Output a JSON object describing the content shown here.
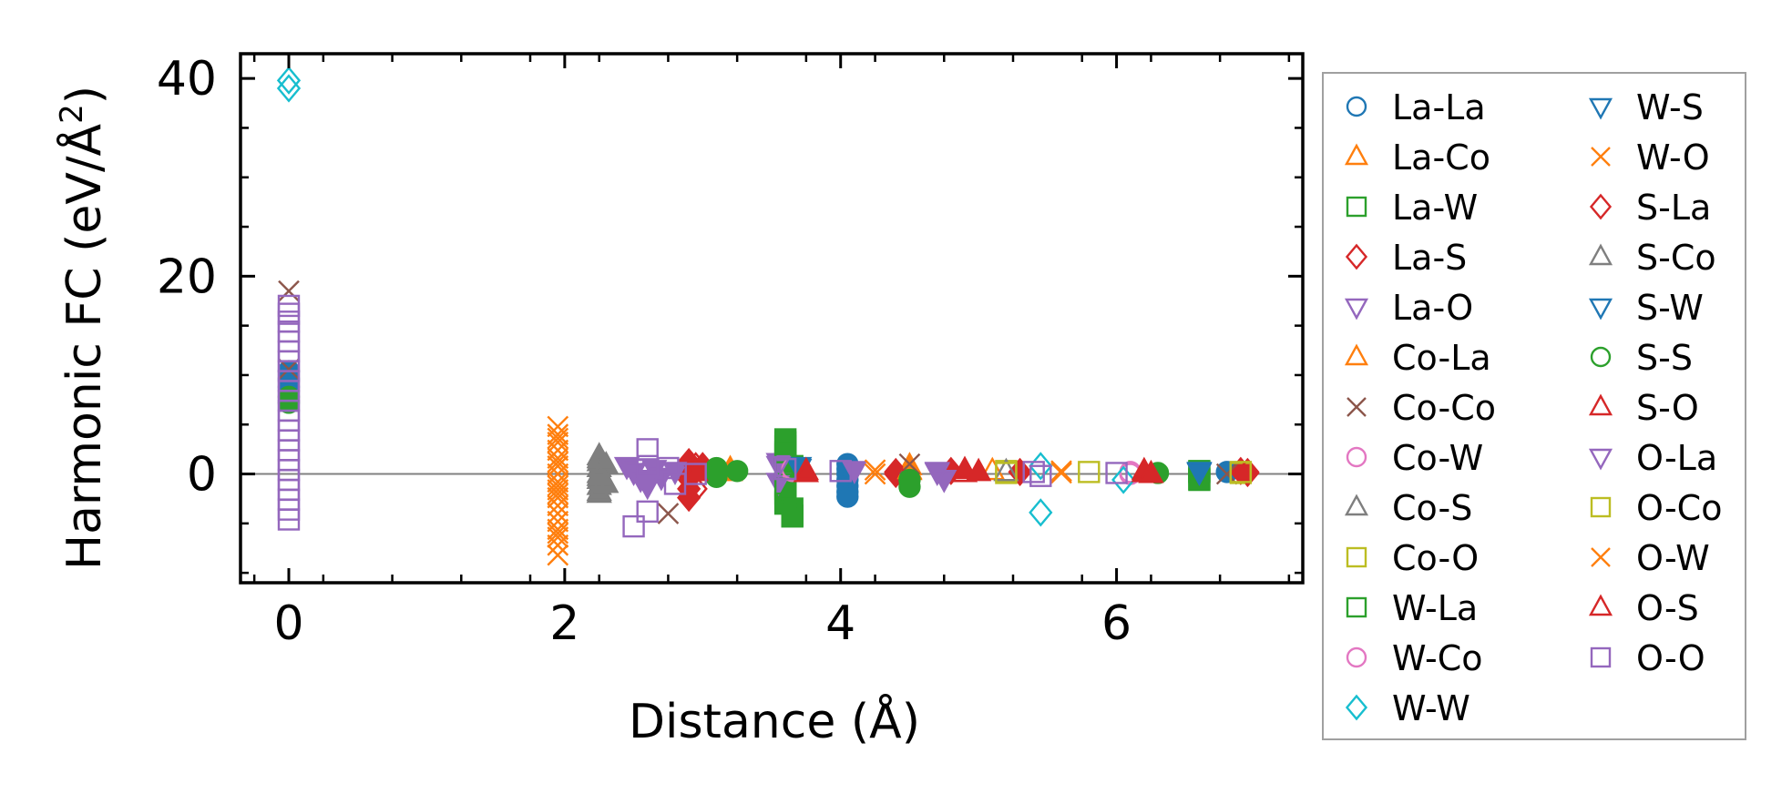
{
  "chart_data": {
    "type": "scatter",
    "title": "",
    "xlabel": "Distance (Å)",
    "ylabel_main": "Harmonic FC (eV/Å",
    "ylabel_sup": "2",
    "ylabel_close": ")",
    "xlim": [
      -0.35,
      7.35
    ],
    "ylim": [
      -11,
      42.5
    ],
    "x_ticks": [
      0,
      2,
      4,
      6
    ],
    "y_ticks": [
      0,
      20,
      40
    ],
    "x_tick_labels": [
      "0",
      "2",
      "4",
      "6"
    ],
    "y_tick_labels": [
      "0",
      "20",
      "40"
    ],
    "grid": false,
    "zero_line": true,
    "legend_position": "outside-right",
    "series": [
      {
        "name": "La-La",
        "marker": "circle",
        "color": "#1f77b4",
        "filled": true,
        "points": [
          [
            0,
            10.4
          ],
          [
            0,
            9.6
          ],
          [
            0,
            8.8
          ],
          [
            4.05,
            1.0
          ],
          [
            4.05,
            0.5
          ],
          [
            4.05,
            0.0
          ],
          [
            4.05,
            -0.6
          ],
          [
            4.05,
            -1.2
          ],
          [
            4.05,
            -1.8
          ],
          [
            4.05,
            -2.3
          ],
          [
            6.8,
            0.2
          ]
        ]
      },
      {
        "name": "La-Co",
        "marker": "triangle-up",
        "color": "#ff7f0e",
        "filled": true,
        "points": [
          [
            3.2,
            0.2
          ],
          [
            3.2,
            0.5
          ],
          [
            4.5,
            0.8
          ],
          [
            4.5,
            0.3
          ]
        ]
      },
      {
        "name": "La-W",
        "marker": "square",
        "color": "#2ca02c",
        "filled": true,
        "points": [
          [
            3.6,
            3.5
          ],
          [
            3.6,
            2.8
          ],
          [
            3.6,
            2.0
          ],
          [
            3.6,
            1.2
          ],
          [
            3.6,
            0.5
          ],
          [
            3.6,
            -0.3
          ],
          [
            3.6,
            -1.2
          ],
          [
            3.6,
            -2.0
          ],
          [
            3.6,
            -2.8
          ],
          [
            3.65,
            -3.5
          ],
          [
            3.65,
            -4.2
          ],
          [
            3.65,
            0.8
          ],
          [
            6.6,
            -0.6
          ],
          [
            6.6,
            0.2
          ]
        ]
      },
      {
        "name": "La-S",
        "marker": "diamond",
        "color": "#d62728",
        "filled": true,
        "points": [
          [
            2.9,
            1.2
          ],
          [
            2.9,
            0.5
          ],
          [
            2.9,
            -0.5
          ],
          [
            2.9,
            -1.5
          ],
          [
            2.9,
            -2.4
          ],
          [
            3.0,
            0.8
          ],
          [
            3.1,
            0.2
          ],
          [
            4.4,
            0.2
          ],
          [
            4.8,
            0.3
          ],
          [
            5.3,
            0.2
          ],
          [
            6.9,
            0.3
          ],
          [
            6.95,
            0.1
          ]
        ]
      },
      {
        "name": "La-O",
        "marker": "triangle-down",
        "color": "#9467bd",
        "filled": true,
        "points": [
          [
            2.45,
            0.8
          ],
          [
            2.5,
            0.2
          ],
          [
            2.55,
            -0.5
          ],
          [
            2.6,
            -1.2
          ],
          [
            2.65,
            0.5
          ],
          [
            2.7,
            -0.3
          ],
          [
            2.8,
            0.3
          ],
          [
            3.55,
            1.2
          ],
          [
            3.55,
            -0.8
          ],
          [
            4.1,
            0.4
          ],
          [
            4.7,
            0.3
          ],
          [
            4.75,
            -0.5
          ]
        ]
      },
      {
        "name": "Co-La",
        "marker": "triangle-up",
        "color": "#ff7f0e",
        "filled": false,
        "points": [
          [
            3.2,
            0.4
          ],
          [
            4.5,
            0.4
          ],
          [
            5.1,
            0.3
          ]
        ]
      },
      {
        "name": "Co-Co",
        "marker": "x",
        "color": "#8c564b",
        "filled": false,
        "points": [
          [
            0,
            18.5
          ],
          [
            0,
            10.6
          ],
          [
            2.75,
            -4.0
          ],
          [
            4.5,
            1.0
          ],
          [
            6.8,
            0.0
          ]
        ]
      },
      {
        "name": "Co-W",
        "marker": "circle",
        "color": "#e377c2",
        "filled": false,
        "points": [
          [
            3.65,
            0.3
          ],
          [
            6.1,
            0.2
          ]
        ]
      },
      {
        "name": "Co-S",
        "marker": "triangle-up",
        "color": "#7f7f7f",
        "filled": true,
        "points": [
          [
            2.25,
            1.8
          ],
          [
            2.25,
            1.2
          ],
          [
            2.25,
            0.6
          ],
          [
            2.25,
            0.0
          ],
          [
            2.25,
            -0.6
          ],
          [
            2.25,
            -1.2
          ],
          [
            2.25,
            -2.0
          ],
          [
            2.3,
            0.9
          ],
          [
            2.3,
            -1.0
          ]
        ]
      },
      {
        "name": "Co-O",
        "marker": "square",
        "color": "#bcbd22",
        "filled": false,
        "points": [
          [
            5.2,
            0.3
          ],
          [
            5.8,
            0.2
          ],
          [
            6.9,
            0.1
          ]
        ]
      },
      {
        "name": "W-La",
        "marker": "square",
        "color": "#2ca02c",
        "filled": false,
        "points": [
          [
            3.6,
            3.2
          ],
          [
            3.6,
            2.2
          ],
          [
            3.6,
            1.0
          ],
          [
            3.6,
            -1.5
          ],
          [
            3.6,
            -3.0
          ],
          [
            3.65,
            -4.3
          ],
          [
            6.6,
            -0.5
          ],
          [
            6.6,
            0.3
          ]
        ]
      },
      {
        "name": "W-Co",
        "marker": "circle",
        "color": "#e377c2",
        "filled": false,
        "points": [
          [
            3.65,
            0.5
          ],
          [
            6.1,
            0.0
          ]
        ]
      },
      {
        "name": "W-W",
        "marker": "diamond",
        "color": "#17becf",
        "filled": false,
        "points": [
          [
            0,
            39.8
          ],
          [
            0,
            39.0
          ],
          [
            5.45,
            0.8
          ],
          [
            5.45,
            -3.9
          ],
          [
            6.05,
            -0.6
          ]
        ]
      },
      {
        "name": "W-S",
        "marker": "triangle-down",
        "color": "#1f77b4",
        "filled": false,
        "points": [
          [
            3.7,
            0.6
          ],
          [
            6.6,
            0.3
          ]
        ]
      },
      {
        "name": "W-O",
        "marker": "x",
        "color": "#ff7f0e",
        "filled": false,
        "points": [
          [
            1.95,
            4.8
          ],
          [
            1.95,
            4.0
          ],
          [
            1.95,
            3.2
          ],
          [
            1.95,
            2.4
          ],
          [
            1.95,
            1.6
          ],
          [
            1.95,
            0.8
          ],
          [
            1.95,
            0.0
          ],
          [
            1.95,
            -0.8
          ],
          [
            1.95,
            -1.6
          ],
          [
            1.95,
            -2.4
          ],
          [
            1.95,
            -3.2
          ],
          [
            1.95,
            -4.0
          ],
          [
            1.95,
            -4.8
          ],
          [
            1.95,
            -5.6
          ],
          [
            1.95,
            -6.4
          ],
          [
            1.95,
            -7.2
          ],
          [
            1.95,
            -8.2
          ],
          [
            1.95,
            1.2
          ],
          [
            1.95,
            -2.0
          ],
          [
            4.25,
            0.4
          ],
          [
            5.6,
            0.3
          ]
        ]
      },
      {
        "name": "S-La",
        "marker": "diamond",
        "color": "#d62728",
        "filled": false,
        "points": [
          [
            2.95,
            0.8
          ],
          [
            2.95,
            -1.5
          ],
          [
            4.4,
            0.0
          ],
          [
            6.95,
            0.2
          ]
        ]
      },
      {
        "name": "S-Co",
        "marker": "triangle-up",
        "color": "#7f7f7f",
        "filled": false,
        "points": [
          [
            2.25,
            1.5
          ],
          [
            2.25,
            -0.3
          ],
          [
            2.25,
            -1.8
          ],
          [
            5.2,
            0.2
          ]
        ]
      },
      {
        "name": "S-W",
        "marker": "triangle-down",
        "color": "#1f77b4",
        "filled": true,
        "points": [
          [
            3.7,
            0.8
          ],
          [
            6.6,
            0.2
          ]
        ]
      },
      {
        "name": "S-S",
        "marker": "circle",
        "color": "#2ca02c",
        "filled": true,
        "points": [
          [
            0,
            7.8
          ],
          [
            0,
            7.2
          ],
          [
            3.1,
            0.6
          ],
          [
            3.1,
            -0.3
          ],
          [
            3.25,
            0.3
          ],
          [
            4.5,
            -0.6
          ],
          [
            4.5,
            -1.3
          ],
          [
            6.3,
            0.1
          ]
        ]
      },
      {
        "name": "S-O",
        "marker": "triangle-up",
        "color": "#d62728",
        "filled": true,
        "points": [
          [
            2.95,
            0.2
          ],
          [
            3.75,
            0.1
          ],
          [
            4.9,
            0.4
          ],
          [
            5.0,
            0.2
          ],
          [
            6.2,
            0.3
          ],
          [
            6.25,
            0.0
          ]
        ]
      },
      {
        "name": "O-La",
        "marker": "triangle-down",
        "color": "#9467bd",
        "filled": false,
        "points": [
          [
            2.5,
            0.6
          ],
          [
            2.6,
            -0.8
          ],
          [
            3.55,
            0.9
          ],
          [
            4.7,
            0.2
          ]
        ]
      },
      {
        "name": "O-Co",
        "marker": "square",
        "color": "#bcbd22",
        "filled": false,
        "points": [
          [
            5.2,
            0.1
          ],
          [
            6.9,
            0.2
          ]
        ]
      },
      {
        "name": "O-W",
        "marker": "x",
        "color": "#ff7f0e",
        "filled": false,
        "points": [
          [
            1.95,
            3.6
          ],
          [
            1.95,
            -1.2
          ],
          [
            1.95,
            -6.0
          ],
          [
            4.25,
            0.0
          ],
          [
            5.6,
            0.1
          ]
        ]
      },
      {
        "name": "O-S",
        "marker": "triangle-up",
        "color": "#d62728",
        "filled": false,
        "points": [
          [
            3.75,
            0.3
          ],
          [
            4.9,
            0.1
          ],
          [
            6.2,
            0.1
          ]
        ]
      },
      {
        "name": "O-O",
        "marker": "square",
        "color": "#9467bd",
        "filled": false,
        "points": [
          [
            0,
            17.0
          ],
          [
            0,
            16.2
          ],
          [
            0,
            15.4
          ],
          [
            0,
            14.4
          ],
          [
            0,
            13.4
          ],
          [
            0,
            12.4
          ],
          [
            0,
            11.4
          ],
          [
            0,
            10.4
          ],
          [
            0,
            9.4
          ],
          [
            0,
            8.4
          ],
          [
            0,
            7.4
          ],
          [
            0,
            6.4
          ],
          [
            0,
            5.4
          ],
          [
            0,
            4.4
          ],
          [
            0,
            3.4
          ],
          [
            0,
            2.4
          ],
          [
            0,
            1.4
          ],
          [
            0,
            0.4
          ],
          [
            0,
            -0.6
          ],
          [
            0,
            -1.6
          ],
          [
            0,
            -2.6
          ],
          [
            0,
            -3.6
          ],
          [
            0,
            -4.6
          ],
          [
            2.5,
            -5.3
          ],
          [
            2.6,
            2.5
          ],
          [
            2.6,
            0.8
          ],
          [
            2.6,
            -3.8
          ],
          [
            2.75,
            0.6
          ],
          [
            2.8,
            -1.0
          ],
          [
            2.95,
            0.0
          ],
          [
            3.6,
            0.5
          ],
          [
            4.0,
            0.3
          ],
          [
            5.4,
            0.2
          ],
          [
            5.45,
            -0.2
          ],
          [
            6.0,
            0.1
          ]
        ]
      }
    ]
  }
}
